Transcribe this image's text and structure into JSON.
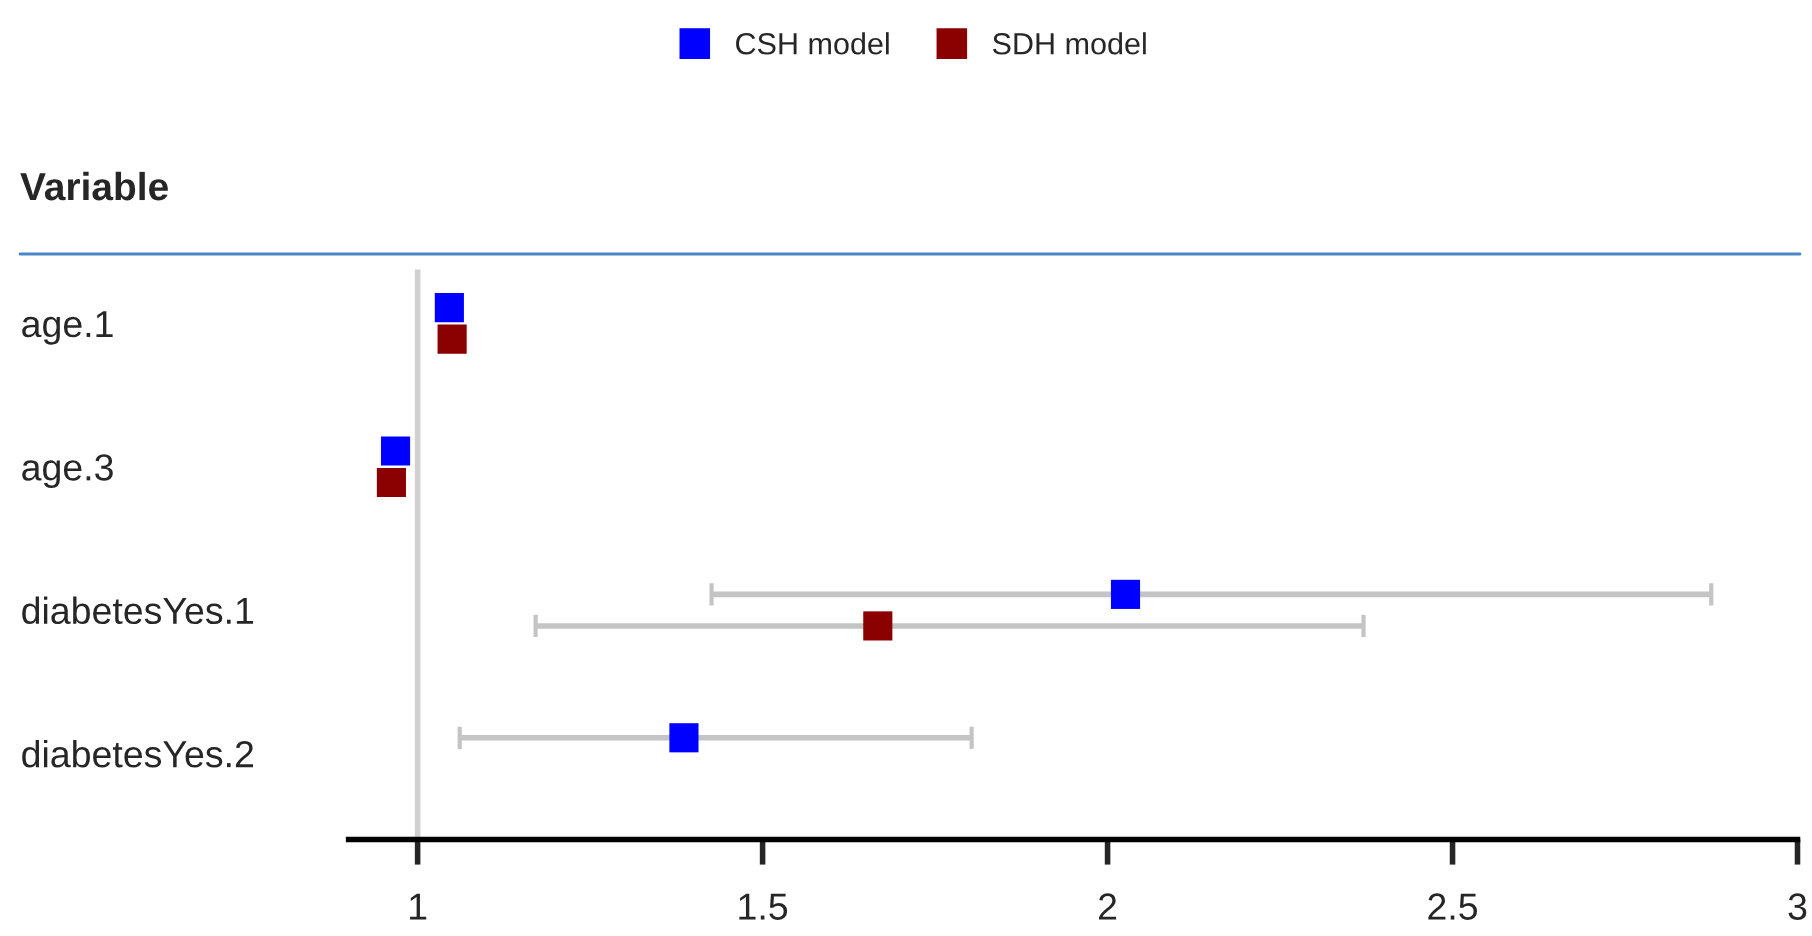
{
  "chart_data": {
    "type": "scatter",
    "orientation": "horizontal",
    "ylabel": "Variable",
    "categories": [
      "age.1",
      "age.3",
      "diabetesYes.1",
      "diabetesYes.2"
    ],
    "series": [
      {
        "name": "CSH model",
        "color": "#0000ff",
        "values": [
          1.046,
          0.968,
          2.026,
          1.386
        ],
        "errors": [
          null,
          null,
          [
            1.426,
            2.875
          ],
          [
            1.061,
            1.803
          ]
        ]
      },
      {
        "name": "SDH model",
        "color": "#8b0000",
        "values": [
          1.05,
          0.962,
          1.667,
          null
        ],
        "errors": [
          null,
          null,
          [
            1.171,
            2.371
          ],
          null
        ]
      }
    ],
    "xlim": [
      0.9,
      3
    ],
    "xticks": [
      1,
      1.5,
      2,
      2.5,
      3
    ],
    "ref_lines": [
      {
        "axis": "x",
        "value": 1,
        "color": "#d0d0d0"
      }
    ],
    "marker": "square",
    "grid": false,
    "legend": "top"
  }
}
